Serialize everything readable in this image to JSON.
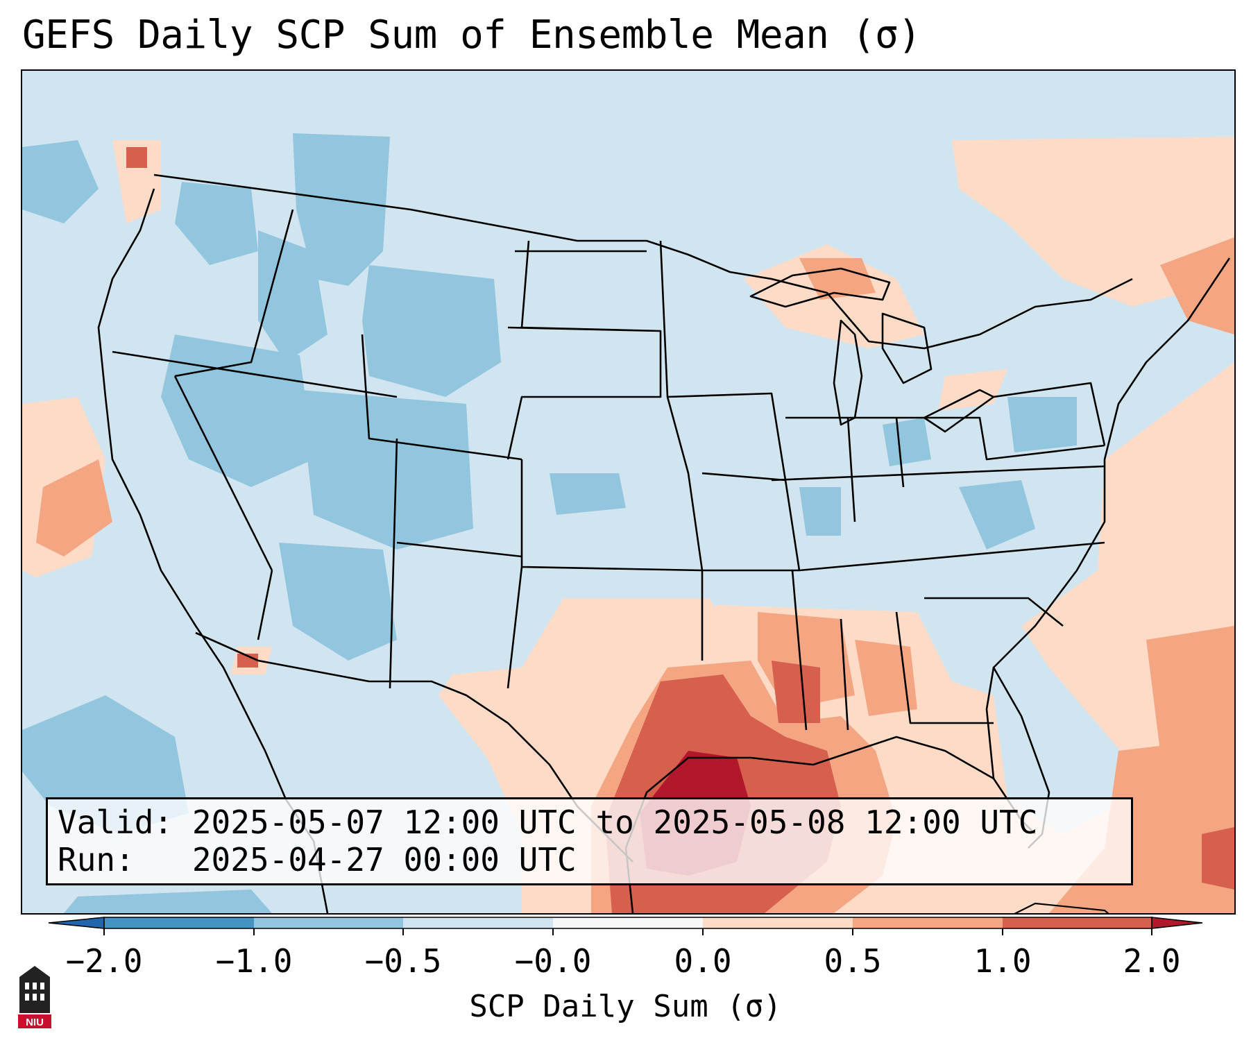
{
  "title": "GEFS Daily SCP Sum of Ensemble Mean (σ)",
  "info_box": {
    "valid_line": "Valid: 2025-05-07 12:00 UTC to 2025-05-08 12:00 UTC",
    "run_line": "Run:   2025-04-27 00:00 UTC"
  },
  "colorbar": {
    "label": "SCP Daily Sum (σ)",
    "tick_labels": [
      "−2.0",
      "−1.0",
      "−0.5",
      "−0.0",
      "0.0",
      "0.5",
      "1.0",
      "2.0"
    ],
    "bins": [
      {
        "range": "< −2.0",
        "color": "#2166ac"
      },
      {
        "range": "−2.0 to −1.0",
        "color": "#4393c3"
      },
      {
        "range": "−1.0 to −0.5",
        "color": "#92c5de"
      },
      {
        "range": "−0.5 to −0.0",
        "color": "#d1e5f0"
      },
      {
        "range": "−0.0 to 0.0",
        "color": "#f7f7f7"
      },
      {
        "range": "0.0 to 0.5",
        "color": "#fddbc7"
      },
      {
        "range": "0.5 to 1.0",
        "color": "#f4a582"
      },
      {
        "range": "1.0 to 2.0",
        "color": "#d6604d"
      },
      {
        "range": "> 2.0",
        "color": "#b2182b"
      }
    ]
  },
  "logo": {
    "text": "NIU",
    "accent_color": "#c8102e"
  }
}
